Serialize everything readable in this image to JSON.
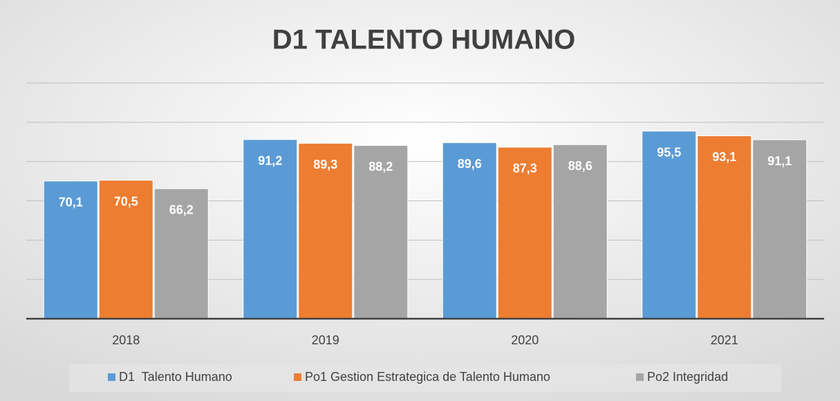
{
  "chart_data": {
    "type": "bar",
    "title": "D1 TALENTO HUMANO",
    "categories": [
      "2018",
      "2019",
      "2020",
      "2021"
    ],
    "series": [
      {
        "name": "D1  Talento Humano",
        "color": "#5b9bd5",
        "values": [
          70.1,
          91.2,
          89.6,
          95.5
        ],
        "value_labels": [
          "70,1",
          "91,2",
          "89,6",
          "95,5"
        ]
      },
      {
        "name": "Po1 Gestion Estrategica de Talento Humano",
        "color": "#ed7d31",
        "values": [
          70.5,
          89.3,
          87.3,
          93.1
        ],
        "value_labels": [
          "70,5",
          "89,3",
          "87,3",
          "93,1"
        ]
      },
      {
        "name": "Po2 Integridad",
        "color": "#a5a5a5",
        "values": [
          66.2,
          88.2,
          88.6,
          91.1
        ],
        "value_labels": [
          "66,2",
          "88,2",
          "88,6",
          "91,1"
        ]
      }
    ],
    "ylim": [
      0,
      120
    ],
    "yticks": [
      0,
      20,
      40,
      60,
      80,
      100,
      120
    ],
    "grid": true,
    "legend": "bottom"
  }
}
